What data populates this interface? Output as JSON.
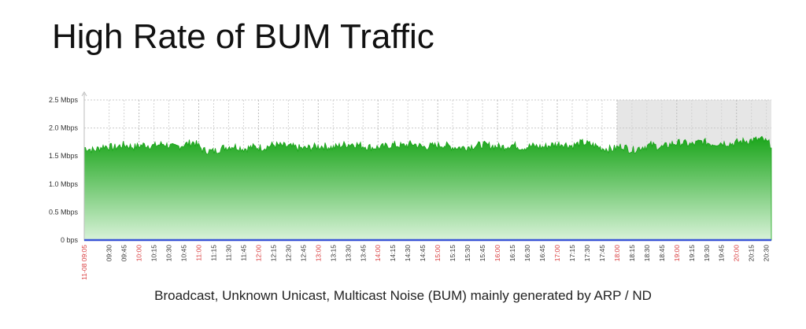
{
  "slide": {
    "title": "High Rate of BUM Traffic",
    "caption": "Broadcast, Unknown Unicast, Multicast Noise (BUM) mainly generated by ARP / ND"
  },
  "chart_data": {
    "type": "area",
    "title": "",
    "xlabel": "",
    "ylabel": "",
    "y_unit": "Mbps",
    "ylim": [
      0,
      2.5
    ],
    "yticks": [
      {
        "value": 0,
        "label": "0 bps"
      },
      {
        "value": 0.5,
        "label": "0.5 Mbps"
      },
      {
        "value": 1.0,
        "label": "1.0 Mbps"
      },
      {
        "value": 1.5,
        "label": "1.5 Mbps"
      },
      {
        "value": 2.0,
        "label": "2.0 Mbps"
      },
      {
        "value": 2.5,
        "label": "2.5 Mbps"
      }
    ],
    "x_start": "09:05",
    "x_end": "20:35",
    "x_ticks": [
      {
        "time": "09:05",
        "label": "11-08 09:05",
        "highlight": true
      },
      {
        "time": "09:30",
        "label": "09:30",
        "highlight": false
      },
      {
        "time": "09:45",
        "label": "09:45",
        "highlight": false
      },
      {
        "time": "10:00",
        "label": "10:00",
        "highlight": true
      },
      {
        "time": "10:15",
        "label": "10:15",
        "highlight": false
      },
      {
        "time": "10:30",
        "label": "10:30",
        "highlight": false
      },
      {
        "time": "10:45",
        "label": "10:45",
        "highlight": false
      },
      {
        "time": "11:00",
        "label": "11:00",
        "highlight": true
      },
      {
        "time": "11:15",
        "label": "11:15",
        "highlight": false
      },
      {
        "time": "11:30",
        "label": "11:30",
        "highlight": false
      },
      {
        "time": "11:45",
        "label": "11:45",
        "highlight": false
      },
      {
        "time": "12:00",
        "label": "12:00",
        "highlight": true
      },
      {
        "time": "12:15",
        "label": "12:15",
        "highlight": false
      },
      {
        "time": "12:30",
        "label": "12:30",
        "highlight": false
      },
      {
        "time": "12:45",
        "label": "12:45",
        "highlight": false
      },
      {
        "time": "13:00",
        "label": "13:00",
        "highlight": true
      },
      {
        "time": "13:15",
        "label": "13:15",
        "highlight": false
      },
      {
        "time": "13:30",
        "label": "13:30",
        "highlight": false
      },
      {
        "time": "13:45",
        "label": "13:45",
        "highlight": false
      },
      {
        "time": "14:00",
        "label": "14:00",
        "highlight": true
      },
      {
        "time": "14:15",
        "label": "14:15",
        "highlight": false
      },
      {
        "time": "14:30",
        "label": "14:30",
        "highlight": false
      },
      {
        "time": "14:45",
        "label": "14:45",
        "highlight": false
      },
      {
        "time": "15:00",
        "label": "15:00",
        "highlight": true
      },
      {
        "time": "15:15",
        "label": "15:15",
        "highlight": false
      },
      {
        "time": "15:30",
        "label": "15:30",
        "highlight": false
      },
      {
        "time": "15:45",
        "label": "15:45",
        "highlight": false
      },
      {
        "time": "16:00",
        "label": "16:00",
        "highlight": true
      },
      {
        "time": "16:15",
        "label": "16:15",
        "highlight": false
      },
      {
        "time": "16:30",
        "label": "16:30",
        "highlight": false
      },
      {
        "time": "16:45",
        "label": "16:45",
        "highlight": false
      },
      {
        "time": "17:00",
        "label": "17:00",
        "highlight": true
      },
      {
        "time": "17:15",
        "label": "17:15",
        "highlight": false
      },
      {
        "time": "17:30",
        "label": "17:30",
        "highlight": false
      },
      {
        "time": "17:45",
        "label": "17:45",
        "highlight": false
      },
      {
        "time": "18:00",
        "label": "18:00",
        "highlight": true
      },
      {
        "time": "18:15",
        "label": "18:15",
        "highlight": false
      },
      {
        "time": "18:30",
        "label": "18:30",
        "highlight": false
      },
      {
        "time": "18:45",
        "label": "18:45",
        "highlight": false
      },
      {
        "time": "19:00",
        "label": "19:00",
        "highlight": true
      },
      {
        "time": "19:15",
        "label": "19:15",
        "highlight": false
      },
      {
        "time": "19:30",
        "label": "19:30",
        "highlight": false
      },
      {
        "time": "19:45",
        "label": "19:45",
        "highlight": false
      },
      {
        "time": "20:00",
        "label": "20:00",
        "highlight": true
      },
      {
        "time": "20:15",
        "label": "20:15",
        "highlight": false
      },
      {
        "time": "20:30",
        "label": "20:30",
        "highlight": false
      }
    ],
    "shaded_range": {
      "from": "18:00",
      "to": "20:35"
    },
    "series": [
      {
        "x": [
          "09:05",
          "09:15",
          "09:25",
          "09:35",
          "09:45",
          "09:55",
          "10:05",
          "10:15",
          "10:25",
          "10:35",
          "10:45",
          "10:55",
          "11:05",
          "11:15",
          "11:25",
          "11:35",
          "11:45",
          "11:55",
          "12:05",
          "12:15",
          "12:25",
          "12:35",
          "12:45",
          "12:55",
          "13:05",
          "13:15",
          "13:25",
          "13:35",
          "13:45",
          "13:55",
          "14:05",
          "14:15",
          "14:25",
          "14:35",
          "14:45",
          "14:55",
          "15:05",
          "15:15",
          "15:25",
          "15:35",
          "15:45",
          "15:55",
          "16:05",
          "16:15",
          "16:25",
          "16:35",
          "16:45",
          "16:55",
          "17:05",
          "17:15",
          "17:25",
          "17:35",
          "17:45",
          "17:55",
          "18:05",
          "18:15",
          "18:25",
          "18:35",
          "18:45",
          "18:55",
          "19:05",
          "19:15",
          "19:25",
          "19:35",
          "19:45",
          "19:55",
          "20:05",
          "20:15",
          "20:25",
          "20:35"
        ],
        "values": [
          1.65,
          1.6,
          1.68,
          1.65,
          1.7,
          1.66,
          1.7,
          1.68,
          1.72,
          1.65,
          1.7,
          1.75,
          1.6,
          1.58,
          1.65,
          1.68,
          1.63,
          1.66,
          1.65,
          1.7,
          1.68,
          1.66,
          1.63,
          1.66,
          1.68,
          1.65,
          1.7,
          1.72,
          1.68,
          1.65,
          1.66,
          1.7,
          1.68,
          1.72,
          1.66,
          1.68,
          1.7,
          1.66,
          1.65,
          1.68,
          1.7,
          1.68,
          1.66,
          1.7,
          1.65,
          1.68,
          1.66,
          1.7,
          1.72,
          1.68,
          1.74,
          1.7,
          1.64,
          1.62,
          1.68,
          1.6,
          1.66,
          1.7,
          1.65,
          1.72,
          1.74,
          1.7,
          1.76,
          1.72,
          1.74,
          1.72,
          1.76,
          1.78,
          1.8,
          1.7
        ],
        "color": "#1aa51a"
      }
    ],
    "grid": true,
    "colors": {
      "fill_top": "#1aa51a",
      "fill_bottom": "#d8f2d8",
      "baseline": "#3a55d6",
      "highlight_label": "#d8383a",
      "shade": "#e6e6e6"
    }
  }
}
